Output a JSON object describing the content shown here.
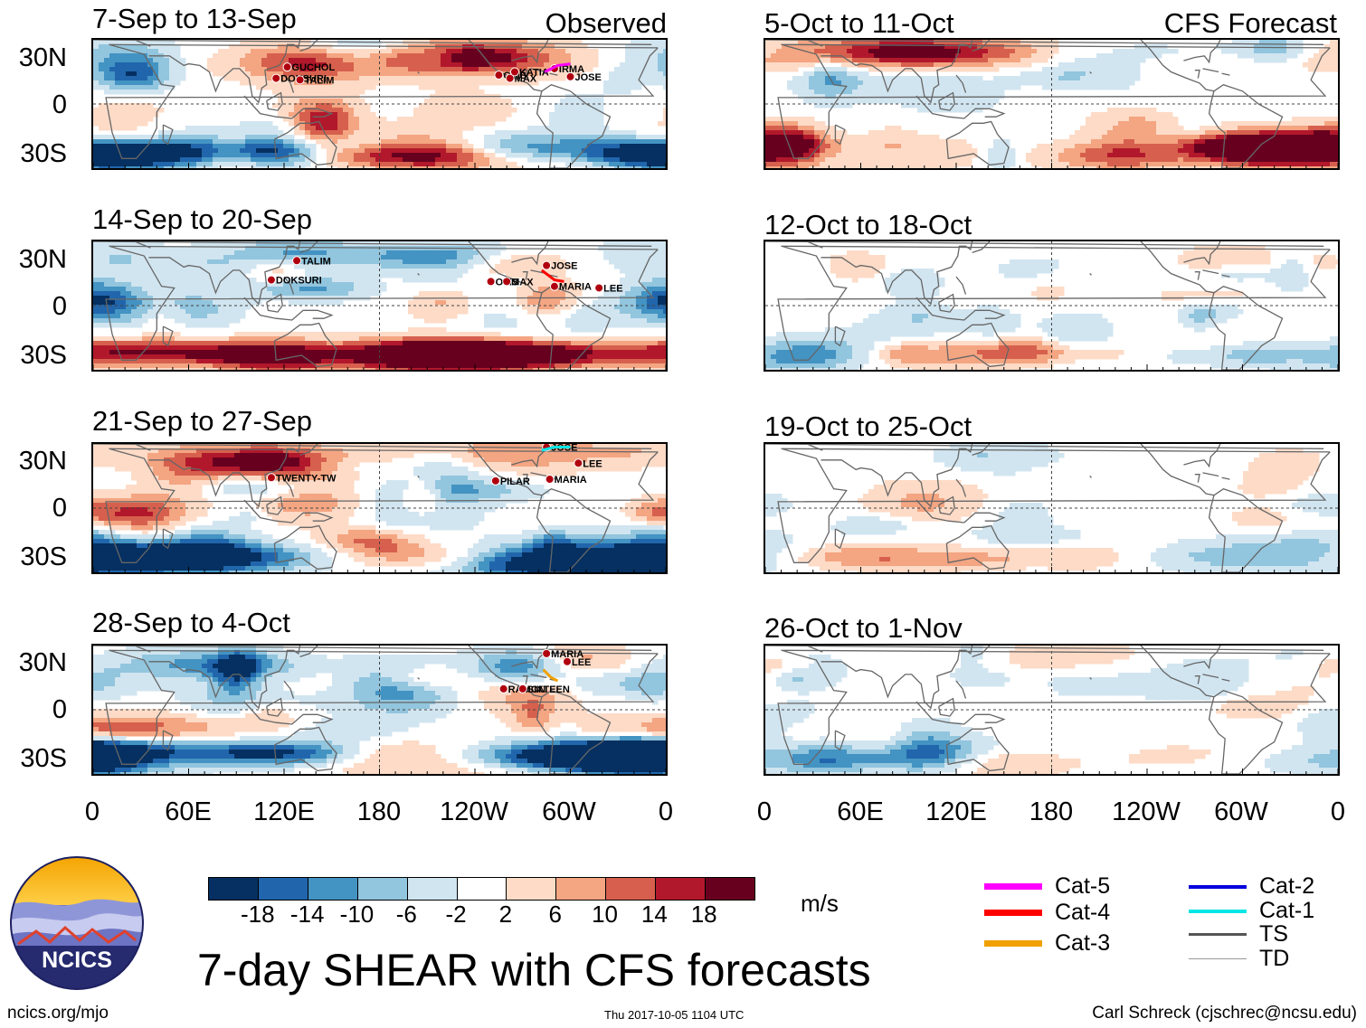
{
  "title": "7-day SHEAR with CFS forecasts",
  "observed_label": "Observed",
  "forecast_label": "CFS Forecast",
  "footer": {
    "url": "ncics.org/mjo",
    "timestamp": "Thu 2017-10-05 1104 UTC",
    "author": "Carl Schreck (cjschrec@ncsu.edu)"
  },
  "logo_text": "NCICS",
  "colorbar": {
    "units": "m/s",
    "ticks": [
      "-18",
      "-14",
      "-10",
      "-6",
      "-2",
      "2",
      "6",
      "10",
      "14",
      "18"
    ],
    "colors": [
      "#053061",
      "#2166ac",
      "#4393c3",
      "#92c5de",
      "#d1e5f0",
      "#ffffff",
      "#fddbc7",
      "#f4a582",
      "#d6604d",
      "#b2182b",
      "#67001f"
    ]
  },
  "legend": [
    {
      "label": "Cat-5",
      "color": "#ff00ff",
      "kind": "thick"
    },
    {
      "label": "Cat-4",
      "color": "#ff0000",
      "kind": "thick"
    },
    {
      "label": "Cat-3",
      "color": "#f0a000",
      "kind": "thick"
    },
    {
      "label": "Cat-2",
      "color": "#0000dd",
      "kind": "medium"
    },
    {
      "label": "Cat-1",
      "color": "#00e5e5",
      "kind": "medium"
    },
    {
      "label": "TS",
      "color": "#555555",
      "kind": "thin"
    },
    {
      "label": "TD",
      "color": "#999999",
      "kind": "hair"
    }
  ],
  "axes": {
    "lat_labels": [
      "30N",
      "0",
      "30S"
    ],
    "lon_labels": [
      "0",
      "60E",
      "120E",
      "180",
      "120W",
      "60W",
      "0"
    ]
  },
  "chart_data": [
    {
      "type": "heatmap",
      "title": "7-Sep to 13-Sep",
      "source": "Observed",
      "variable": "vertical wind shear anomaly",
      "xlim": [
        0,
        360
      ],
      "ylim": [
        -40,
        40
      ],
      "storms": [
        "GUCHOL",
        "DOKSURI",
        "TALIM",
        "OTIS",
        "MAX",
        "KATIA",
        "IRMA",
        "JOSE"
      ]
    },
    {
      "type": "heatmap",
      "title": "14-Sep to 20-Sep",
      "source": "Observed",
      "variable": "vertical wind shear anomaly",
      "xlim": [
        0,
        360
      ],
      "ylim": [
        -40,
        40
      ],
      "storms": [
        "TALIM",
        "DOKSURI",
        "OTIS",
        "MAX",
        "JOSE",
        "MARIA",
        "LEE"
      ]
    },
    {
      "type": "heatmap",
      "title": "21-Sep to 27-Sep",
      "source": "Observed",
      "variable": "vertical wind shear anomaly",
      "xlim": [
        0,
        360
      ],
      "ylim": [
        -40,
        40
      ],
      "storms": [
        "TWENTY-TW",
        "PILAR",
        "JOSE",
        "LEE",
        "MARIA"
      ]
    },
    {
      "type": "heatmap",
      "title": "28-Sep to 4-Oct",
      "source": "Observed",
      "variable": "vertical wind shear anomaly",
      "xlim": [
        0,
        360
      ],
      "ylim": [
        -40,
        40
      ],
      "storms": [
        "MARIA",
        "LEE",
        "RAMON",
        "SIXTEEN"
      ]
    },
    {
      "type": "heatmap",
      "title": "5-Oct to 11-Oct",
      "source": "CFS Forecast",
      "variable": "vertical wind shear anomaly",
      "xlim": [
        0,
        360
      ],
      "ylim": [
        -40,
        40
      ],
      "storms": []
    },
    {
      "type": "heatmap",
      "title": "12-Oct to 18-Oct",
      "source": "CFS Forecast",
      "variable": "vertical wind shear anomaly",
      "xlim": [
        0,
        360
      ],
      "ylim": [
        -40,
        40
      ],
      "storms": []
    },
    {
      "type": "heatmap",
      "title": "19-Oct to 25-Oct",
      "source": "CFS Forecast",
      "variable": "vertical wind shear anomaly",
      "xlim": [
        0,
        360
      ],
      "ylim": [
        -40,
        40
      ],
      "storms": []
    },
    {
      "type": "heatmap",
      "title": "26-Oct to 1-Nov",
      "source": "CFS Forecast",
      "variable": "vertical wind shear anomaly",
      "xlim": [
        0,
        360
      ],
      "ylim": [
        -40,
        40
      ],
      "storms": []
    }
  ]
}
